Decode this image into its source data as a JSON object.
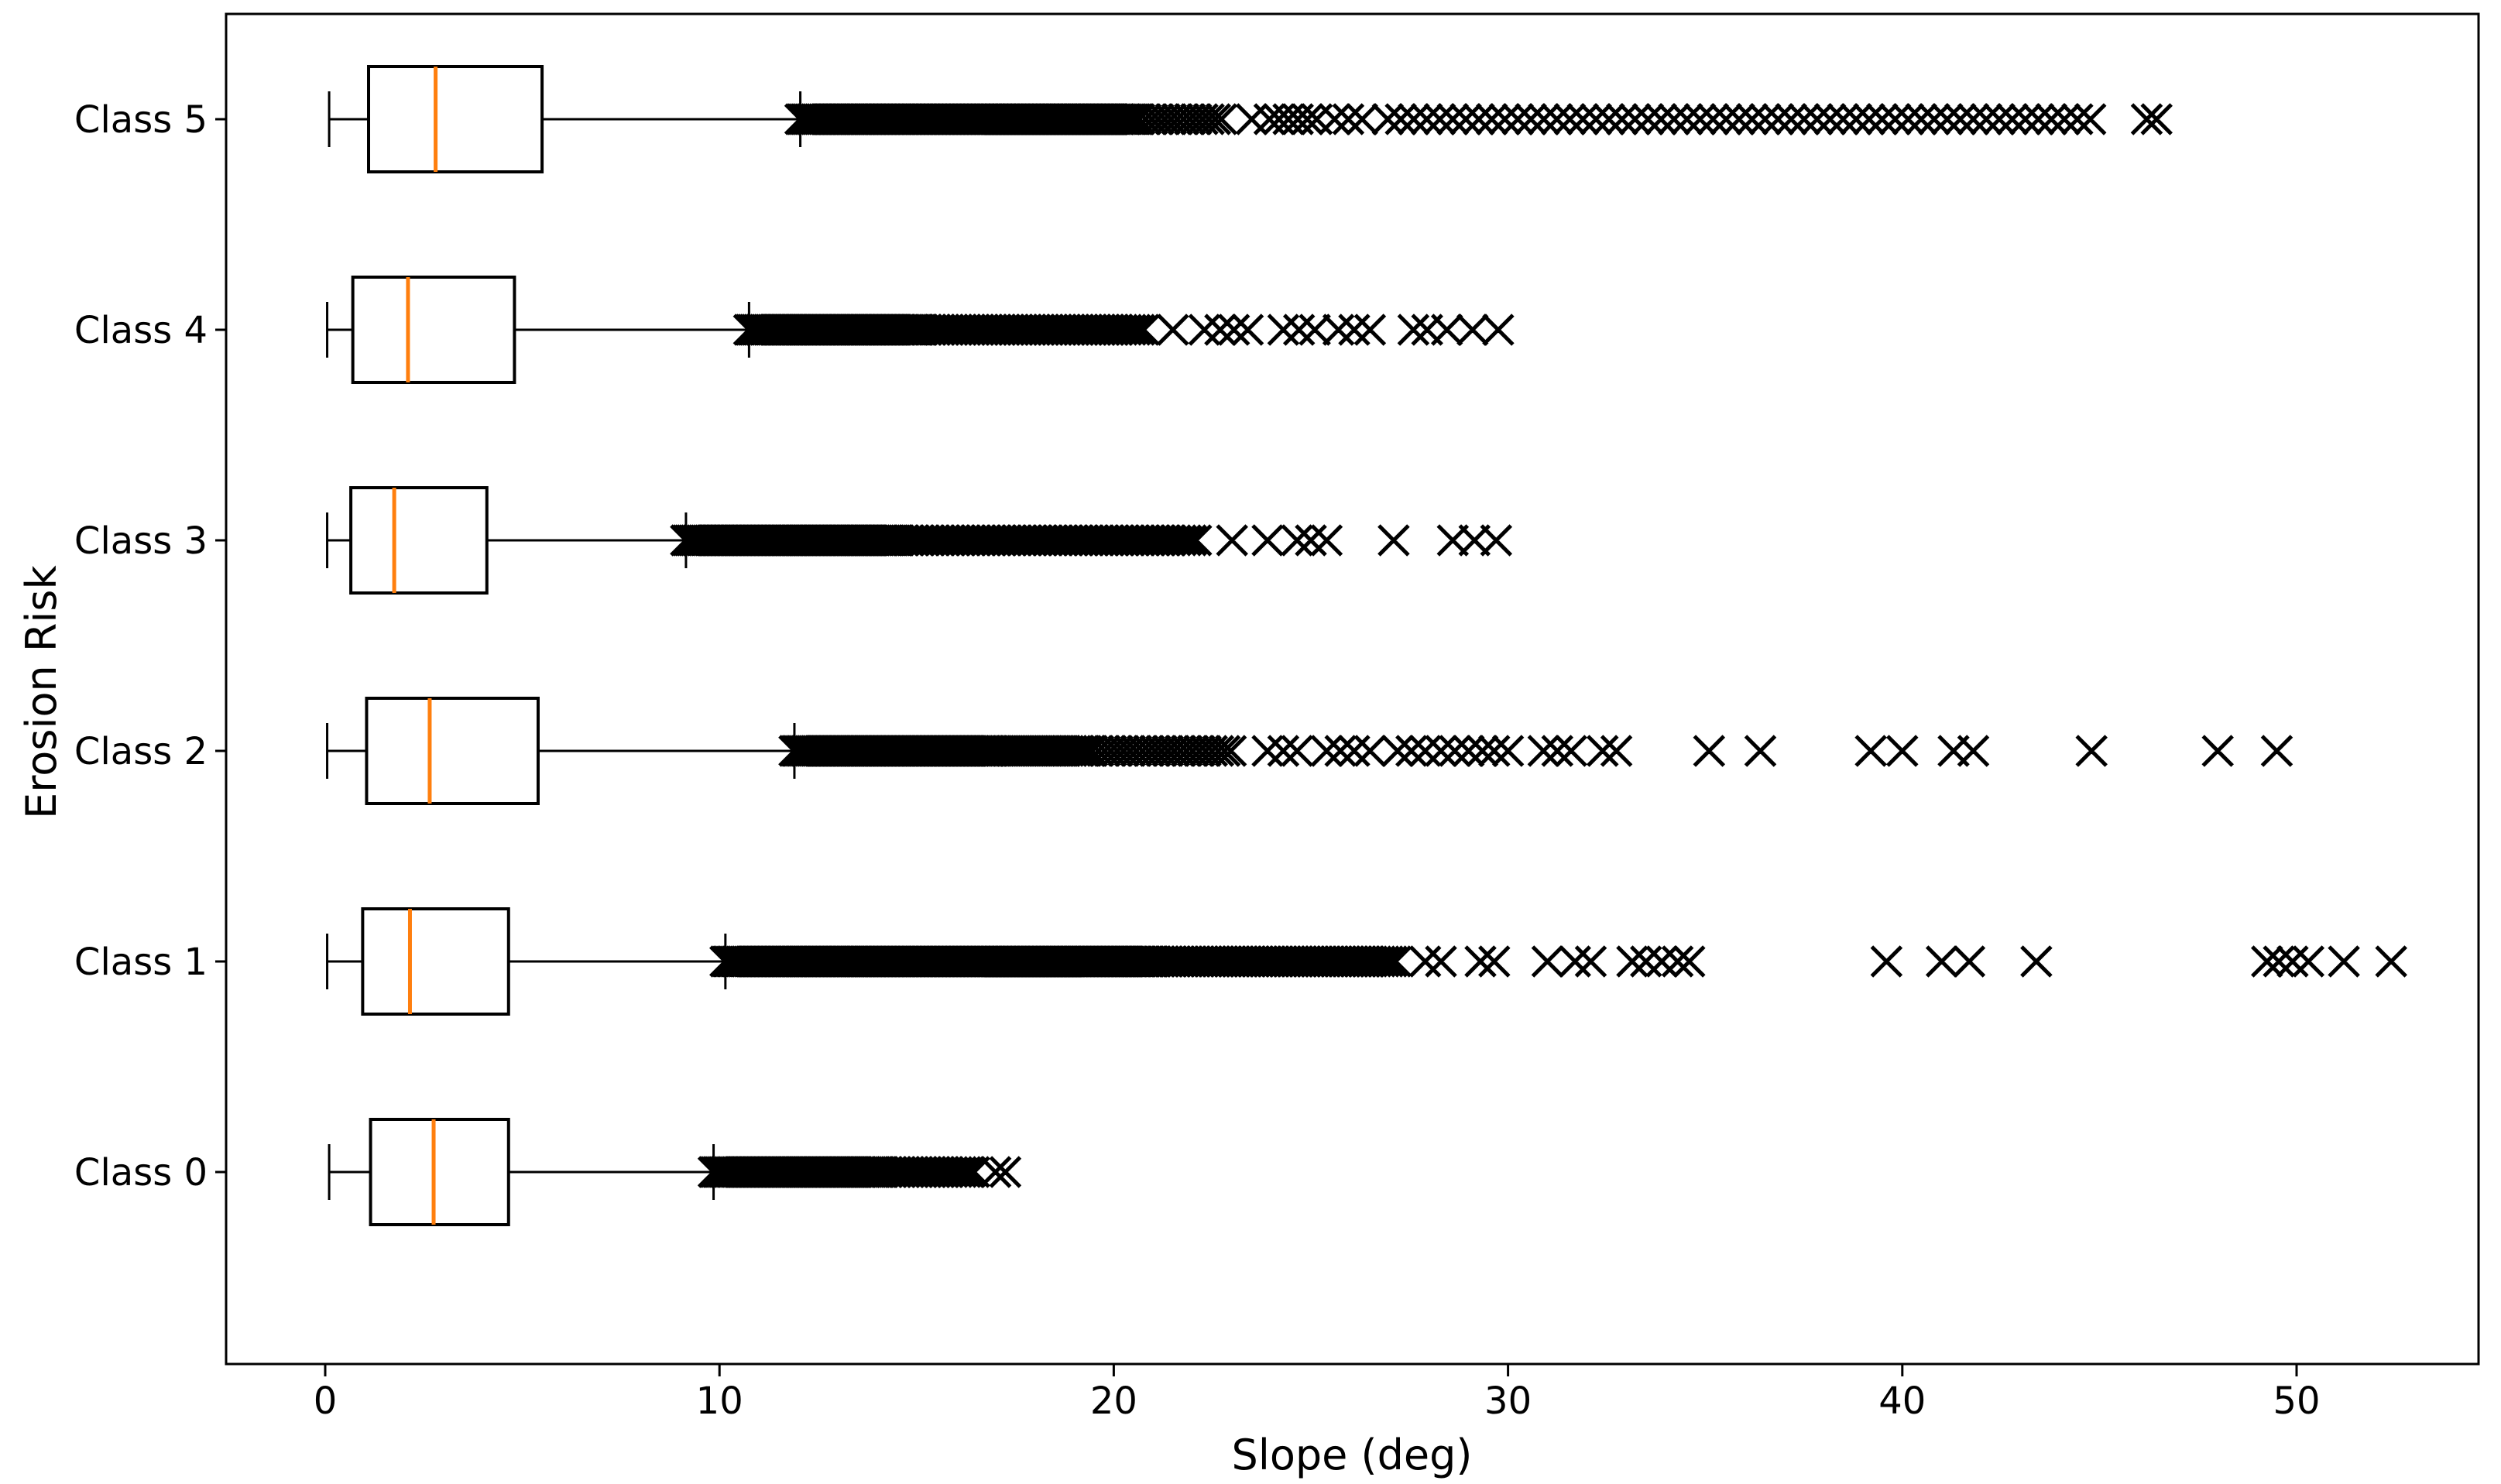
{
  "chart_data": {
    "type": "boxplot",
    "orientation": "horizontal",
    "title": "",
    "xlabel": "Slope (deg)",
    "ylabel": "Erosion Risk",
    "x_ticks": [
      0,
      10,
      20,
      30,
      40,
      50
    ],
    "xlim": [
      -2.51,
      54.62
    ],
    "grid": false,
    "legend": "none",
    "marker": "x",
    "colors": {
      "box_stroke": "#000000",
      "median": "#ff7f0e",
      "outlier": "#000000",
      "axis": "#000000",
      "background": "#ffffff"
    },
    "categories_top_to_bottom": [
      "Class 5",
      "Class 4",
      "Class 3",
      "Class 2",
      "Class 1",
      "Class 0"
    ],
    "boxes": [
      {
        "label": "Class 5",
        "whislo": 0.1,
        "q1": 1.1,
        "med": 2.8,
        "q3": 5.5,
        "whishi": 12.05,
        "outlier_runs": [
          [
            12.05,
            20.6,
            0.05
          ],
          [
            20.65,
            22.8,
            0.16
          ],
          [
            23.95,
            25.15,
            0.24
          ],
          [
            26.95,
            44.9,
            0.33
          ]
        ],
        "outlier_points": [
          23.5,
          25.6,
          25.95,
          26.3,
          46.2,
          46.45
        ]
      },
      {
        "label": "Class 4",
        "whislo": 0.05,
        "q1": 0.7,
        "med": 2.1,
        "q3": 4.8,
        "whishi": 10.75,
        "outlier_runs": [
          [
            10.75,
            15.1,
            0.05
          ],
          [
            15.15,
            20.8,
            0.11
          ]
        ],
        "outlier_points": [
          21.5,
          22.3,
          22.7,
          23.05,
          23.4,
          24.3,
          24.7,
          25.1,
          25.7,
          26.1,
          26.5,
          27.6,
          27.95,
          28.45,
          29.1,
          29.75
        ]
      },
      {
        "label": "Class 3",
        "whislo": 0.05,
        "q1": 0.65,
        "med": 1.75,
        "q3": 4.1,
        "whishi": 9.15,
        "outlier_runs": [
          [
            9.15,
            14.5,
            0.05
          ],
          [
            14.55,
            22.2,
            0.13
          ]
        ],
        "outlier_points": [
          23.0,
          23.9,
          24.65,
          25.0,
          25.4,
          27.1,
          28.6,
          29.15,
          29.7
        ]
      },
      {
        "label": "Class 2",
        "whislo": 0.05,
        "q1": 1.05,
        "med": 2.65,
        "q3": 5.4,
        "whishi": 11.9,
        "outlier_runs": [
          [
            11.9,
            17.0,
            0.05
          ],
          [
            17.05,
            19.4,
            0.09
          ],
          [
            19.45,
            23.0,
            0.16
          ]
        ],
        "outlier_points": [
          23.9,
          24.3,
          24.65,
          25.4,
          25.75,
          26.1,
          26.5,
          27.2,
          27.55,
          27.9,
          28.3,
          28.65,
          29.0,
          29.35,
          29.65,
          30.0,
          30.9,
          31.25,
          31.6,
          32.4,
          32.75,
          35.1,
          36.4,
          39.2,
          40.0,
          41.3,
          41.8,
          44.8,
          48.0,
          49.5
        ]
      },
      {
        "label": "Class 1",
        "whislo": 0.05,
        "q1": 0.95,
        "med": 2.15,
        "q3": 4.65,
        "whishi": 10.15,
        "outlier_runs": [
          [
            10.15,
            21.0,
            0.05
          ],
          [
            21.05,
            27.2,
            0.1
          ]
        ],
        "outlier_points": [
          27.9,
          28.3,
          29.3,
          29.65,
          31.0,
          31.7,
          32.1,
          33.15,
          33.5,
          33.9,
          34.3,
          34.6,
          39.6,
          41.0,
          41.7,
          43.4,
          49.25,
          49.55,
          49.9,
          50.3,
          51.2,
          52.4
        ]
      },
      {
        "label": "Class 0",
        "whislo": 0.1,
        "q1": 1.15,
        "med": 2.75,
        "q3": 4.65,
        "whishi": 9.85,
        "outlier_runs": [
          [
            9.85,
            14.1,
            0.05
          ],
          [
            14.15,
            16.5,
            0.11
          ]
        ],
        "outlier_points": [
          17.0,
          17.25
        ]
      }
    ]
  }
}
